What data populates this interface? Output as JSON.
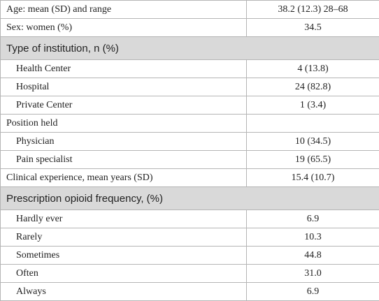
{
  "table": {
    "rows": [
      {
        "label": "Age: mean (SD) and range",
        "value": "38.2 (12.3) 28–68"
      },
      {
        "label": "Sex: women (%)",
        "value": "34.5"
      },
      {
        "section": "Type of institution, n (%)",
        "items": [
          {
            "label": "Health Center",
            "value": "4 (13.8)"
          },
          {
            "label": "Hospital",
            "value": "24 (82.8)"
          },
          {
            "label": "Private Center",
            "value": "1 (3.4)"
          }
        ]
      },
      {
        "label": "Position held",
        "items": [
          {
            "label": "Physician",
            "value": "10 (34.5)"
          },
          {
            "label": "Pain specialist",
            "value": "19 (65.5)"
          }
        ]
      },
      {
        "label": "Clinical experience, mean years (SD)",
        "value": "15.4 (10.7)"
      },
      {
        "section": "Prescription opioid frequency, (%)",
        "items": [
          {
            "label": "Hardly ever",
            "value": "6.9"
          },
          {
            "label": "Rarely",
            "value": "10.3"
          },
          {
            "label": "Sometimes",
            "value": "44.8"
          },
          {
            "label": "Often",
            "value": "31.0"
          },
          {
            "label": "Always",
            "value": "6.9"
          }
        ]
      }
    ]
  }
}
